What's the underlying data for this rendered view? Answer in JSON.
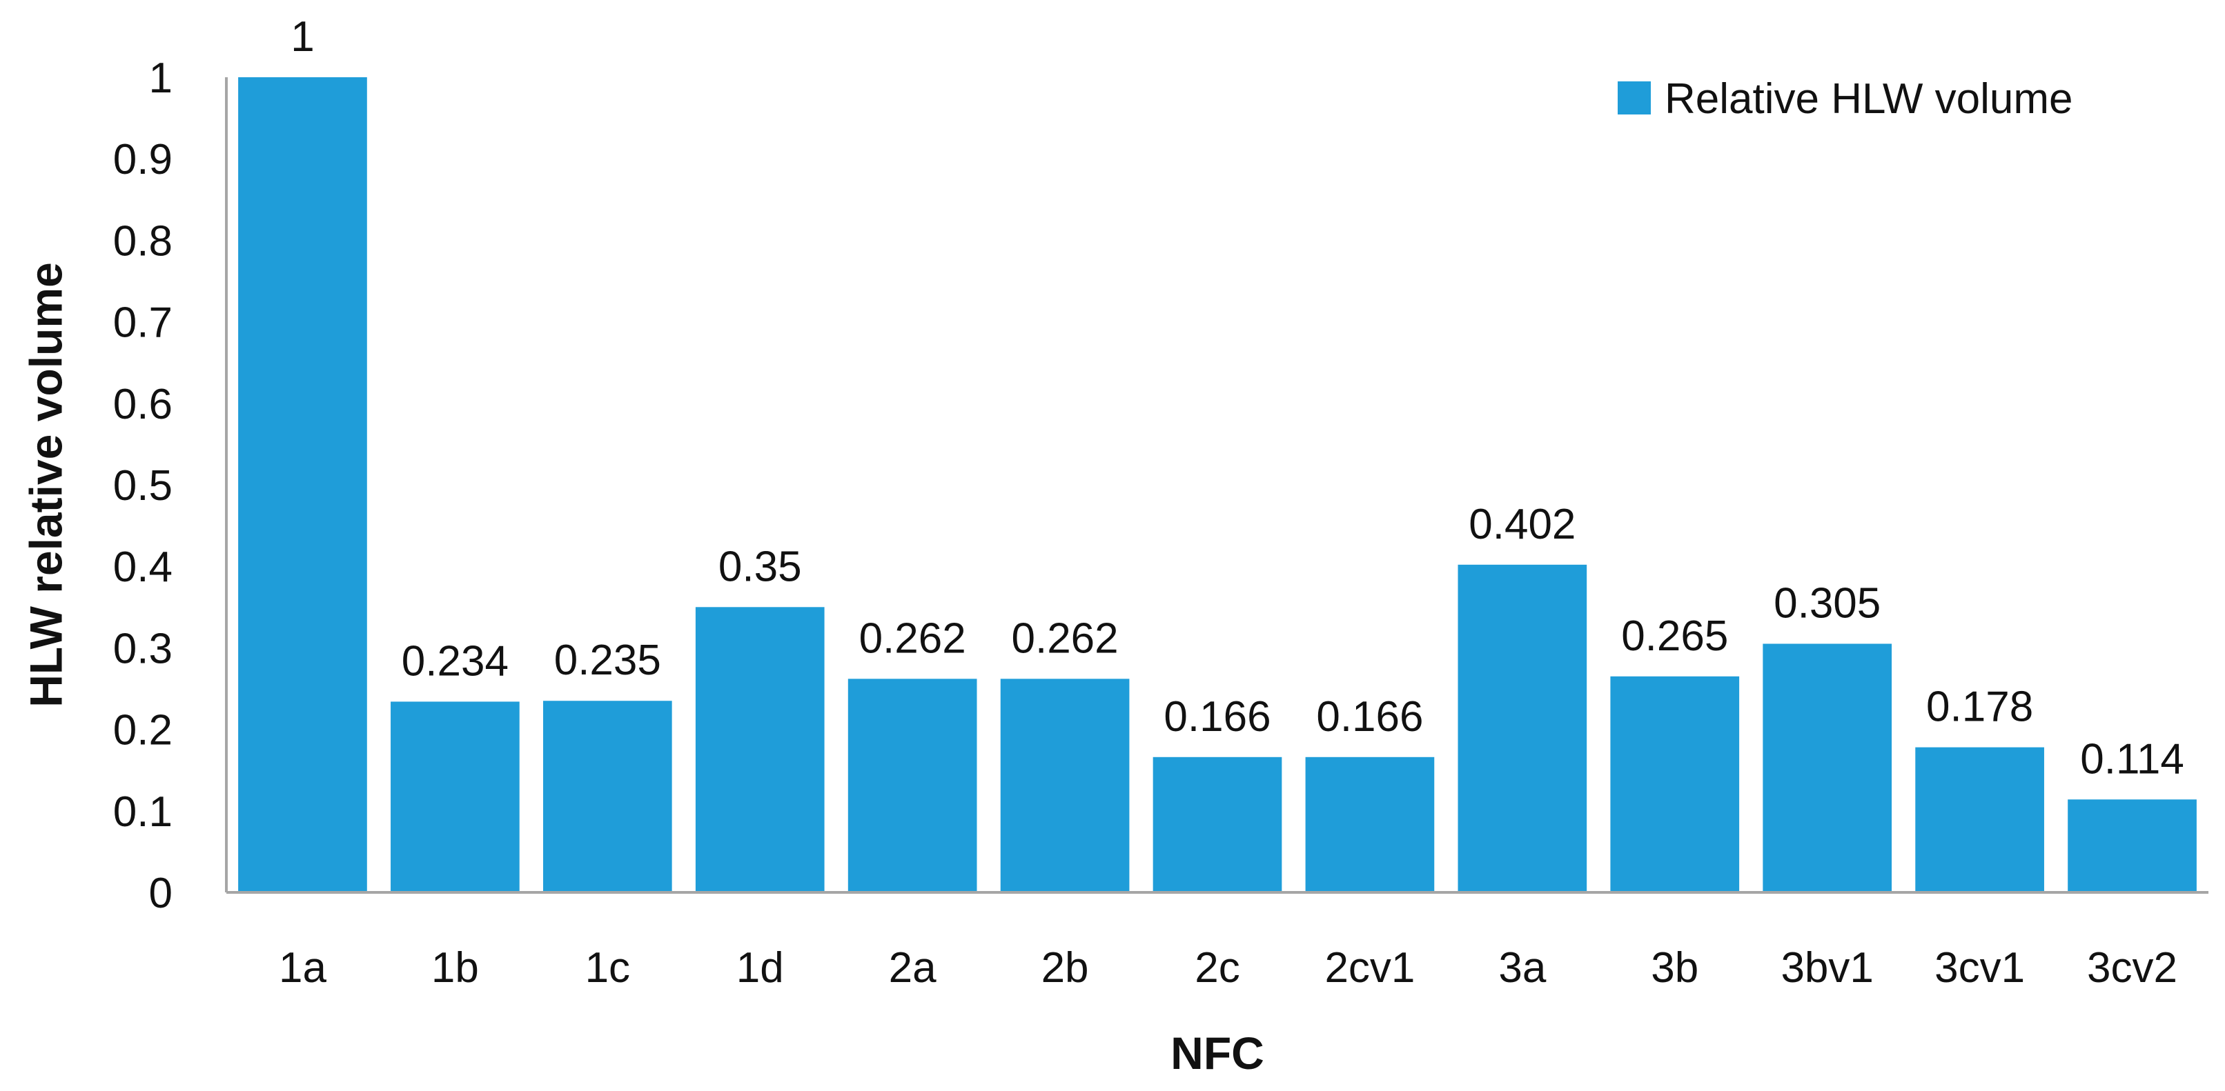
{
  "chart_data": {
    "type": "bar",
    "title": "",
    "xlabel": "NFC",
    "ylabel": "HLW relative volume",
    "ylim": [
      0,
      1
    ],
    "yticks": [
      "0",
      "0.1",
      "0.2",
      "0.3",
      "0.4",
      "0.5",
      "0.6",
      "0.7",
      "0.8",
      "0.9",
      "1"
    ],
    "categories": [
      "1a",
      "1b",
      "1c",
      "1d",
      "2a",
      "2b",
      "2c",
      "2cv1",
      "3a",
      "3b",
      "3bv1",
      "3cv1",
      "3cv2"
    ],
    "series": [
      {
        "name": "Relative HLW volume",
        "color": "#1f9dd9",
        "values": [
          1,
          0.234,
          0.235,
          0.35,
          0.262,
          0.262,
          0.166,
          0.166,
          0.402,
          0.265,
          0.305,
          0.178,
          0.114
        ],
        "labels": [
          "1",
          "0.234",
          "0.235",
          "0.35",
          "0.262",
          "0.262",
          "0.166",
          "0.166",
          "0.402",
          "0.265",
          "0.305",
          "0.178",
          "0.114"
        ]
      }
    ],
    "grid": false,
    "legend": "top-right",
    "axis_color": "#a6a6a6"
  }
}
